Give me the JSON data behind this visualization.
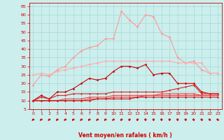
{
  "x": [
    0,
    1,
    2,
    3,
    4,
    5,
    6,
    7,
    8,
    9,
    10,
    11,
    12,
    13,
    14,
    15,
    16,
    17,
    18,
    19,
    20,
    21,
    22,
    23
  ],
  "series": [
    {
      "name": "light_pink_high",
      "color": "#ff9999",
      "lw": 0.8,
      "marker": "D",
      "ms": 1.8,
      "values": [
        19,
        25,
        24,
        28,
        30,
        35,
        39,
        41,
        42,
        46,
        46,
        62,
        57,
        53,
        60,
        59,
        49,
        47,
        35,
        32,
        33,
        28,
        26,
        26
      ]
    },
    {
      "name": "pink_mid",
      "color": "#ffaaaa",
      "lw": 0.8,
      "marker": "D",
      "ms": 1.8,
      "values": [
        25,
        26,
        25,
        27,
        28,
        29,
        30,
        31,
        32,
        33,
        33,
        33,
        33,
        33,
        33,
        33,
        33,
        33,
        32,
        32,
        32,
        32,
        26,
        26
      ]
    },
    {
      "name": "dark_red_wavy",
      "color": "#cc0000",
      "lw": 0.8,
      "marker": "D",
      "ms": 1.8,
      "values": [
        10,
        13,
        11,
        15,
        15,
        17,
        20,
        23,
        22,
        23,
        27,
        30,
        30,
        29,
        31,
        25,
        26,
        26,
        20,
        20,
        20,
        15,
        14,
        14
      ]
    },
    {
      "name": "red_lower1",
      "color": "#dd2222",
      "lw": 0.8,
      "marker": "D",
      "ms": 1.5,
      "values": [
        10,
        12,
        11,
        13,
        13,
        14,
        14,
        14,
        14,
        14,
        15,
        15,
        15,
        15,
        15,
        15,
        15,
        16,
        17,
        18,
        19,
        14,
        14,
        14
      ]
    },
    {
      "name": "red_lower2",
      "color": "#ee4444",
      "lw": 0.8,
      "marker": "D",
      "ms": 1.5,
      "values": [
        10,
        10,
        10,
        10,
        11,
        11,
        11,
        12,
        12,
        12,
        13,
        13,
        13,
        13,
        13,
        13,
        14,
        14,
        14,
        14,
        14,
        13,
        13,
        13
      ]
    },
    {
      "name": "red_flat1",
      "color": "#ff3333",
      "lw": 0.8,
      "marker": "D",
      "ms": 1.5,
      "values": [
        10,
        10,
        10,
        10,
        10,
        10,
        10,
        11,
        11,
        11,
        12,
        12,
        12,
        12,
        13,
        13,
        13,
        13,
        13,
        13,
        13,
        13,
        13,
        13
      ]
    },
    {
      "name": "red_flat2",
      "color": "#cc1111",
      "lw": 0.8,
      "marker": "D",
      "ms": 1.5,
      "values": [
        10,
        10,
        10,
        10,
        10,
        10,
        10,
        10,
        11,
        11,
        11,
        11,
        11,
        12,
        12,
        12,
        12,
        12,
        12,
        12,
        12,
        12,
        12,
        12
      ]
    }
  ],
  "xlabel": "Vent moyen/en rafales ( km/h )",
  "xlim": [
    -0.5,
    23.5
  ],
  "ylim": [
    5,
    67
  ],
  "yticks": [
    5,
    10,
    15,
    20,
    25,
    30,
    35,
    40,
    45,
    50,
    55,
    60,
    65
  ],
  "xticks": [
    0,
    1,
    2,
    3,
    4,
    5,
    6,
    7,
    8,
    9,
    10,
    11,
    12,
    13,
    14,
    15,
    16,
    17,
    18,
    19,
    20,
    21,
    22,
    23
  ],
  "bg_color": "#cceeed",
  "grid_color": "#aadddb",
  "text_color": "#cc0000",
  "arrow_color": "#cc0000",
  "arrow_angles": [
    45,
    45,
    40,
    38,
    40,
    38,
    40,
    38,
    40,
    35,
    30,
    25,
    15,
    10,
    5,
    0,
    0,
    0,
    355,
    350,
    345,
    340,
    335,
    330
  ]
}
